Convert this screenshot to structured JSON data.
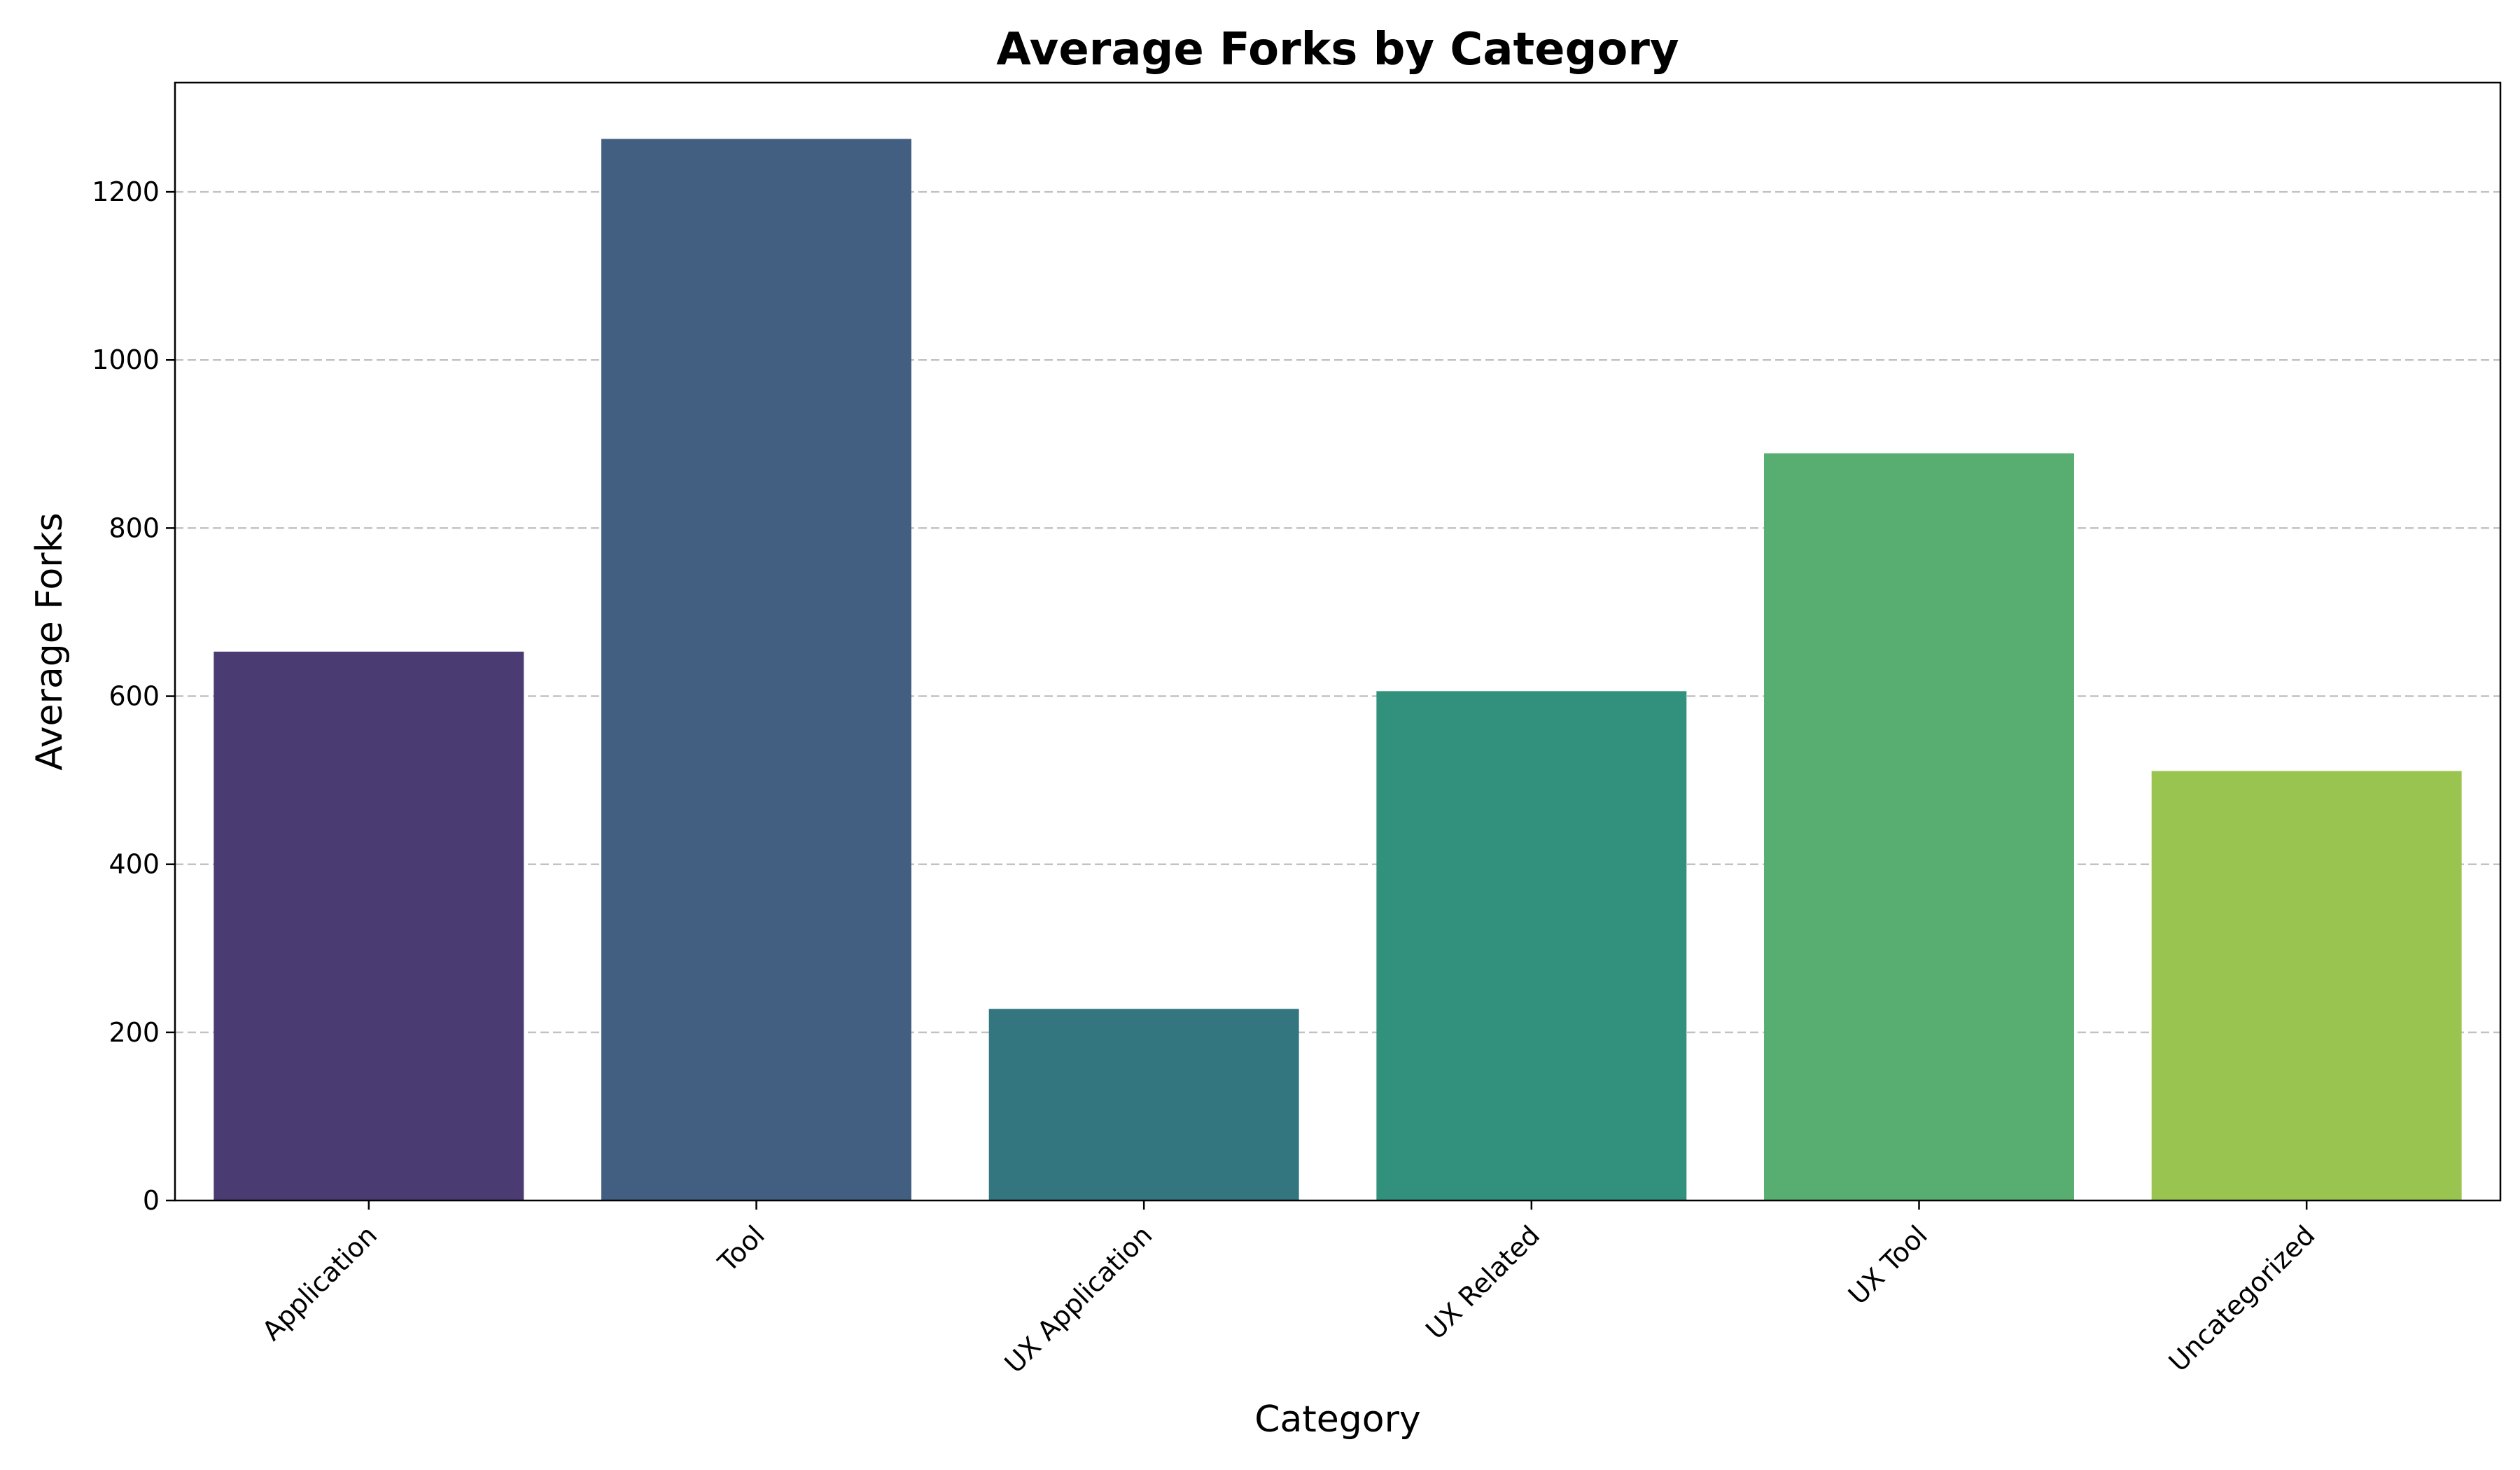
{
  "chart_data": {
    "type": "bar",
    "title": "Average Forks by Category",
    "xlabel": "Category",
    "ylabel": "Average Forks",
    "categories": [
      "Application",
      "Tool",
      "UX Application",
      "UX Related",
      "UX Tool",
      "Uncategorized"
    ],
    "values": [
      653,
      1263,
      228,
      606,
      889,
      511
    ],
    "colors": [
      "#4a3b73",
      "#425e81",
      "#34767f",
      "#32917c",
      "#58ae71",
      "#98c44f"
    ],
    "ylim": [
      0,
      1330
    ],
    "yticks": [
      0,
      200,
      400,
      600,
      800,
      1000,
      1200
    ],
    "grid": {
      "axis": "y",
      "style": "dashed",
      "color": "#c2c2c2"
    },
    "legend": "none",
    "xtick_rotation_deg": 45
  }
}
